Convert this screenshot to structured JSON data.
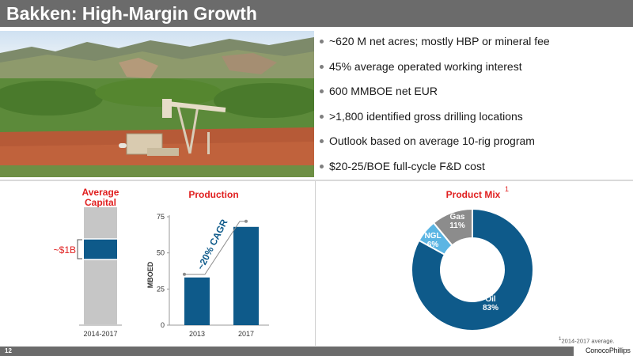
{
  "slide": {
    "title": "Bakken: High-Margin Growth",
    "page_number": "12",
    "company": "ConocoPhillips",
    "footnote_mark": "1",
    "footnote_text": "2014-2017 average."
  },
  "bullets": [
    "~620 M net acres; mostly HBP or mineral fee",
    "45% average operated working interest",
    "600 MMBOE net EUR",
    ">1,800 identified gross drilling locations",
    "Outlook based on average 10-rig program",
    "$20-25/BOE full-cycle F&D cost"
  ],
  "colors": {
    "title_bar": "#6b6b6b",
    "accent_red": "#e02020",
    "blue": "#0e5a8a",
    "light_blue": "#5bb5e3",
    "gray_bar": "#c6c6c6",
    "gas_gray": "#8c8c8c"
  },
  "chart_data": [
    {
      "type": "bar",
      "title": "Average Capital",
      "categories": [
        "2014-2017"
      ],
      "annotation": "~$1B"
    },
    {
      "type": "bar",
      "title": "Production",
      "ylabel": "MBOED",
      "categories": [
        "2013",
        "2017"
      ],
      "values": [
        33,
        68
      ],
      "ylim": [
        0,
        75
      ],
      "yticks": [
        0,
        25,
        50,
        75
      ],
      "annotation": "~20% CAGR"
    },
    {
      "type": "pie",
      "title": "Product Mix",
      "title_superscript": "1",
      "slices": [
        {
          "label": "Oil",
          "value": 83,
          "value_label": "83%",
          "color": "#0e5a8a"
        },
        {
          "label": "NGL",
          "value": 6,
          "value_label": "6%",
          "color": "#5bb5e3"
        },
        {
          "label": "Gas",
          "value": 11,
          "value_label": "11%",
          "color": "#8c8c8c"
        }
      ]
    }
  ]
}
